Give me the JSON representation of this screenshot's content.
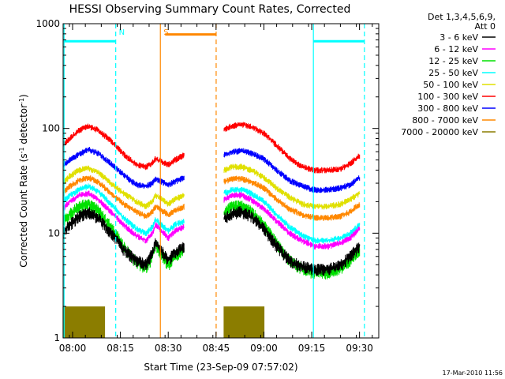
{
  "chart_data": {
    "type": "line",
    "title": "HESSI Observing Summary Count Rates, Corrected",
    "xlabel": "Start Time (23-Sep-09 07:57:02)",
    "ylabel_parts": [
      "Corrected Count Rate (s",
      "-1",
      " detector",
      "-1",
      ")"
    ],
    "x_unit": "minutes since 07:57:02",
    "xlim": [
      0,
      99
    ],
    "ylim": [
      1,
      1000
    ],
    "yscale": "log",
    "x_ticks": [
      {
        "label": "08:00",
        "value": 2.97
      },
      {
        "label": "08:15",
        "value": 17.97
      },
      {
        "label": "08:30",
        "value": 32.97
      },
      {
        "label": "08:45",
        "value": 47.97
      },
      {
        "label": "09:00",
        "value": 62.97
      },
      {
        "label": "09:15",
        "value": 77.97
      },
      {
        "label": "09:30",
        "value": 92.97
      }
    ],
    "y_ticks": [
      {
        "label": "1",
        "value": 1
      },
      {
        "label": "10",
        "value": 10
      },
      {
        "label": "100",
        "value": 100
      },
      {
        "label": "1000",
        "value": 1000
      }
    ],
    "legend": {
      "placement": "right",
      "header": [
        "Det 1,3,4,5,6,9,",
        "Att 0"
      ],
      "entries": [
        {
          "label": "3 - 6 keV",
          "color": "#000000"
        },
        {
          "label": "6 - 12 keV",
          "color": "#ff00ff"
        },
        {
          "label": "12 - 25 keV",
          "color": "#00e000"
        },
        {
          "label": "25 - 50 keV",
          "color": "#00ffff"
        },
        {
          "label": "50 - 100 keV",
          "color": "#e0e000"
        },
        {
          "label": "100 - 300 keV",
          "color": "#ff0000"
        },
        {
          "label": "300 - 800 keV",
          "color": "#0000ff"
        },
        {
          "label": "800 - 7000 keV",
          "color": "#ff8800"
        },
        {
          "label": "7000 - 20000 keV",
          "color": "#8b7d00"
        }
      ]
    },
    "segments": [
      [
        0,
        38
      ],
      [
        50.5,
        93
      ]
    ],
    "series": [
      {
        "name": "100 - 300 keV",
        "color": "#ff0000",
        "points": [
          [
            0,
            70
          ],
          [
            2,
            80
          ],
          [
            5,
            96
          ],
          [
            8,
            105
          ],
          [
            11,
            96
          ],
          [
            15,
            76
          ],
          [
            19,
            57
          ],
          [
            23,
            45
          ],
          [
            26,
            43
          ],
          [
            28,
            47
          ],
          [
            29,
            52
          ],
          [
            31,
            48
          ],
          [
            33,
            45
          ],
          [
            35,
            50
          ],
          [
            38,
            56
          ],
          [
            50.5,
            98
          ],
          [
            53,
            106
          ],
          [
            56,
            109
          ],
          [
            59,
            104
          ],
          [
            63,
            90
          ],
          [
            67,
            69
          ],
          [
            71,
            52
          ],
          [
            75,
            43
          ],
          [
            79,
            40
          ],
          [
            83,
            40
          ],
          [
            87,
            41
          ],
          [
            90,
            46
          ],
          [
            93,
            55
          ]
        ]
      },
      {
        "name": "300 - 800 keV",
        "color": "#0000ff",
        "points": [
          [
            0,
            45
          ],
          [
            2,
            50
          ],
          [
            5,
            57
          ],
          [
            8,
            63
          ],
          [
            11,
            58
          ],
          [
            15,
            46
          ],
          [
            19,
            36
          ],
          [
            23,
            29
          ],
          [
            26,
            28
          ],
          [
            28,
            30
          ],
          [
            29,
            33
          ],
          [
            31,
            31
          ],
          [
            33,
            29
          ],
          [
            35,
            31
          ],
          [
            38,
            34
          ],
          [
            50.5,
            56
          ],
          [
            53,
            60
          ],
          [
            56,
            61
          ],
          [
            59,
            58
          ],
          [
            63,
            51
          ],
          [
            67,
            40
          ],
          [
            71,
            32
          ],
          [
            75,
            28
          ],
          [
            79,
            26
          ],
          [
            83,
            26
          ],
          [
            87,
            27
          ],
          [
            90,
            29
          ],
          [
            93,
            34
          ]
        ]
      },
      {
        "name": "50 - 100 keV",
        "color": "#e0e000",
        "points": [
          [
            0,
            30
          ],
          [
            2,
            35
          ],
          [
            5,
            40
          ],
          [
            8,
            42
          ],
          [
            11,
            38
          ],
          [
            15,
            30
          ],
          [
            19,
            24
          ],
          [
            23,
            20
          ],
          [
            26,
            18
          ],
          [
            28,
            20
          ],
          [
            29,
            23
          ],
          [
            31,
            21
          ],
          [
            33,
            19
          ],
          [
            35,
            21
          ],
          [
            38,
            23
          ],
          [
            50.5,
            40
          ],
          [
            53,
            43
          ],
          [
            56,
            43
          ],
          [
            59,
            40
          ],
          [
            63,
            34
          ],
          [
            67,
            27
          ],
          [
            71,
            22
          ],
          [
            75,
            19
          ],
          [
            79,
            18
          ],
          [
            83,
            18
          ],
          [
            87,
            19
          ],
          [
            90,
            21
          ],
          [
            93,
            24
          ]
        ]
      },
      {
        "name": "800 - 7000 keV",
        "color": "#ff8800",
        "points": [
          [
            0,
            24
          ],
          [
            2,
            28
          ],
          [
            5,
            32
          ],
          [
            8,
            34
          ],
          [
            11,
            31
          ],
          [
            15,
            24
          ],
          [
            19,
            19
          ],
          [
            23,
            16
          ],
          [
            26,
            14.5
          ],
          [
            28,
            16
          ],
          [
            29,
            18
          ],
          [
            31,
            16.5
          ],
          [
            33,
            15
          ],
          [
            35,
            16.5
          ],
          [
            38,
            18
          ],
          [
            50.5,
            31
          ],
          [
            53,
            33
          ],
          [
            56,
            33
          ],
          [
            59,
            31
          ],
          [
            63,
            27
          ],
          [
            67,
            21
          ],
          [
            71,
            17
          ],
          [
            75,
            15
          ],
          [
            79,
            14
          ],
          [
            83,
            14
          ],
          [
            87,
            14.5
          ],
          [
            90,
            16
          ],
          [
            93,
            19
          ]
        ]
      },
      {
        "name": "25 - 50 keV",
        "color": "#00ffff",
        "points": [
          [
            0,
            20
          ],
          [
            2,
            23
          ],
          [
            5,
            26
          ],
          [
            8,
            28
          ],
          [
            11,
            25
          ],
          [
            15,
            19
          ],
          [
            19,
            14
          ],
          [
            23,
            11
          ],
          [
            26,
            10
          ],
          [
            28,
            11.5
          ],
          [
            29,
            13.5
          ],
          [
            31,
            12
          ],
          [
            33,
            10.5
          ],
          [
            35,
            12
          ],
          [
            38,
            13
          ],
          [
            50.5,
            24
          ],
          [
            53,
            26
          ],
          [
            56,
            26
          ],
          [
            59,
            24
          ],
          [
            63,
            20
          ],
          [
            67,
            15
          ],
          [
            71,
            11.5
          ],
          [
            75,
            9.5
          ],
          [
            79,
            8.5
          ],
          [
            83,
            8.5
          ],
          [
            87,
            9
          ],
          [
            90,
            10
          ],
          [
            93,
            12
          ]
        ]
      },
      {
        "name": "6 - 12 keV",
        "color": "#ff00ff",
        "points": [
          [
            0,
            17
          ],
          [
            2,
            20
          ],
          [
            5,
            23
          ],
          [
            8,
            24
          ],
          [
            11,
            21
          ],
          [
            15,
            16
          ],
          [
            19,
            12
          ],
          [
            23,
            9.5
          ],
          [
            26,
            8.5
          ],
          [
            28,
            10
          ],
          [
            29,
            12
          ],
          [
            31,
            10.5
          ],
          [
            33,
            9
          ],
          [
            35,
            10.5
          ],
          [
            38,
            11.5
          ],
          [
            50.5,
            21
          ],
          [
            53,
            23
          ],
          [
            56,
            23
          ],
          [
            59,
            21
          ],
          [
            63,
            17
          ],
          [
            67,
            13
          ],
          [
            71,
            10
          ],
          [
            75,
            8.5
          ],
          [
            79,
            7.5
          ],
          [
            83,
            7.5
          ],
          [
            87,
            8
          ],
          [
            90,
            9
          ],
          [
            93,
            11
          ]
        ]
      },
      {
        "name": "12 - 25 keV",
        "color": "#00e000",
        "points": [
          [
            0,
            13
          ],
          [
            2,
            15
          ],
          [
            5,
            18
          ],
          [
            8,
            19
          ],
          [
            11,
            16.5
          ],
          [
            15,
            11.5
          ],
          [
            19,
            7.5
          ],
          [
            23,
            5.2
          ],
          [
            26,
            4.6
          ],
          [
            28,
            6
          ],
          [
            29,
            7.8
          ],
          [
            31,
            6.2
          ],
          [
            33,
            5
          ],
          [
            35,
            6
          ],
          [
            38,
            7
          ],
          [
            50.5,
            16
          ],
          [
            53,
            18
          ],
          [
            56,
            18
          ],
          [
            59,
            16
          ],
          [
            63,
            12
          ],
          [
            67,
            8
          ],
          [
            71,
            5.5
          ],
          [
            75,
            4.5
          ],
          [
            79,
            4.2
          ],
          [
            83,
            4.2
          ],
          [
            87,
            4.6
          ],
          [
            90,
            5.5
          ],
          [
            93,
            7
          ]
        ]
      },
      {
        "name": "3 - 6 keV",
        "color": "#000000",
        "points": [
          [
            0,
            10
          ],
          [
            2,
            12
          ],
          [
            5,
            14.5
          ],
          [
            8,
            16
          ],
          [
            11,
            14
          ],
          [
            15,
            10
          ],
          [
            19,
            7
          ],
          [
            23,
            5.5
          ],
          [
            26,
            5
          ],
          [
            28,
            6.5
          ],
          [
            29,
            8
          ],
          [
            31,
            6.7
          ],
          [
            33,
            5.5
          ],
          [
            35,
            6.5
          ],
          [
            38,
            7.5
          ],
          [
            50.5,
            14
          ],
          [
            53,
            15.5
          ],
          [
            56,
            16
          ],
          [
            59,
            14.5
          ],
          [
            63,
            11
          ],
          [
            67,
            7.5
          ],
          [
            71,
            5.5
          ],
          [
            75,
            4.8
          ],
          [
            79,
            4.5
          ],
          [
            83,
            4.5
          ],
          [
            87,
            5
          ],
          [
            90,
            6
          ],
          [
            93,
            7.5
          ]
        ]
      }
    ],
    "bursts_7000_20000keV": {
      "level": 2,
      "intervals": [
        [
          0,
          13
        ],
        [
          50.5,
          63
        ]
      ]
    },
    "markers": [
      {
        "label": "N",
        "color": "#00ffff",
        "style": "dash",
        "x": 16.5
      },
      {
        "label": "",
        "color": "#00ffff",
        "style": "solid",
        "x": 0.3
      },
      {
        "label": "",
        "color": "#00ffff",
        "style": "solid",
        "x": 78.5
      },
      {
        "label": "",
        "color": "#00ffff",
        "style": "dash",
        "x": 94.5
      },
      {
        "label": "S",
        "color": "#ff8800",
        "style": "solid",
        "x": 30.5
      },
      {
        "label": "",
        "color": "#ff8800",
        "style": "dash",
        "x": 48
      }
    ],
    "top_bars": [
      {
        "color": "#00ffff",
        "from": 0.3,
        "to": 16.5,
        "level": 680
      },
      {
        "color": "#00ffff",
        "from": 78.5,
        "to": 94.5,
        "level": 680
      },
      {
        "color": "#ff8800",
        "from": 32,
        "to": 48,
        "level": 790
      }
    ]
  },
  "footer": {
    "timestamp": "17-Mar-2010 11:56"
  }
}
